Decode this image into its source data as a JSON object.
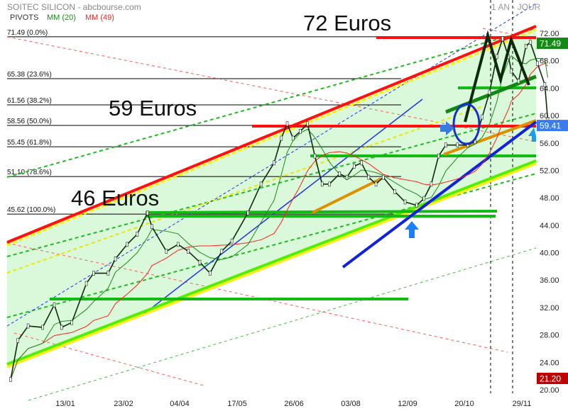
{
  "header": {
    "title": "SOITEC SILICON - abcbourse.com",
    "period": "1 AN - JOUR",
    "legend": [
      {
        "label": "PIVOTS",
        "color": "#333333"
      },
      {
        "label": "MM (20)",
        "color": "#1a8c1a"
      },
      {
        "label": "MM (49)",
        "color": "#ff2020"
      }
    ]
  },
  "annotations": {
    "level_72": "72 Euros",
    "level_59": "59 Euros",
    "level_46": "46 Euros"
  },
  "chart_data": {
    "type": "line",
    "title": "SOITEC SILICON - abcbourse.com",
    "ylim": [
      20,
      72
    ],
    "y_ticks": [
      "72.00",
      "68.00",
      "64.00",
      "60.00",
      "56.00",
      "52.00",
      "48.00",
      "44.00",
      "40.00",
      "36.00",
      "32.00",
      "28.00",
      "24.00",
      "20.00"
    ],
    "x_ticks": [
      "13/01",
      "23/02",
      "04/04",
      "17/05",
      "26/06",
      "03/08",
      "12/09",
      "20/10",
      "29/11"
    ],
    "fibonacci": [
      {
        "label": "71.49  (0.0%)",
        "value": 71.49
      },
      {
        "label": "65.38  (23.6%)",
        "value": 65.38
      },
      {
        "label": "61.56  (38.2%)",
        "value": 61.56
      },
      {
        "label": "58.56  (50.0%)",
        "value": 58.56
      },
      {
        "label": "55.45  (61.8%)",
        "value": 55.45
      },
      {
        "label": "51.10  (78.6%)",
        "value": 51.1
      },
      {
        "label": "45.62  (100.0%)",
        "value": 45.62
      }
    ],
    "price_badges": [
      {
        "label": "71.49",
        "value": 71.49,
        "color": "#138a13"
      },
      {
        "label": "59.41",
        "value": 59.41,
        "color": "#3a7cf0"
      },
      {
        "label": "21.20",
        "value": 21.2,
        "color": "#c00000"
      }
    ],
    "series": [
      {
        "name": "SOITEC SILICON",
        "color": "#0e2a0e",
        "x": [
          "06/12",
          "11/12",
          "18/12",
          "28/12",
          "05/01",
          "10/01",
          "17/01",
          "27/01",
          "01/02",
          "11/02",
          "16/02",
          "24/02",
          "03/03",
          "10/03",
          "13/03",
          "23/03",
          "31/03",
          "07/04",
          "15/04",
          "22/04",
          "30/04",
          "07/05",
          "18/05",
          "27/05",
          "05/06",
          "10/06",
          "14/06",
          "18/06",
          "23/06",
          "28/06",
          "03/07",
          "08/07",
          "13/07",
          "20/07",
          "25/07",
          "30/07",
          "04/08",
          "09/08",
          "14/08",
          "19/08",
          "27/08",
          "03/09",
          "11/09",
          "16/09",
          "21/09",
          "26/09",
          "01/10",
          "09/10",
          "16/10",
          "21/10",
          "26/10",
          "31/10",
          "05/11",
          "09/11",
          "13/11",
          "15/11",
          "20/11",
          "25/11",
          "28/11",
          "03/12",
          "08/12",
          "10/12"
        ],
        "values": [
          21.5,
          27.2,
          29.3,
          29.1,
          32.4,
          29.1,
          29.8,
          35.5,
          37.0,
          37.0,
          39.1,
          41.2,
          42.7,
          45.8,
          43.8,
          40.2,
          41.2,
          40.2,
          38.6,
          37.0,
          40.2,
          41.7,
          45.8,
          50.0,
          53.1,
          56.7,
          58.8,
          56.7,
          57.7,
          58.8,
          54.1,
          50.0,
          50.0,
          51.5,
          51.0,
          52.6,
          53.1,
          51.0,
          50.0,
          51.0,
          48.9,
          47.4,
          46.9,
          47.9,
          50.0,
          54.1,
          55.7,
          55.7,
          55.7,
          56.2,
          59.8,
          63.4,
          68.6,
          71.2,
          68.6,
          66.5,
          65.0,
          70.1,
          70.7,
          67.6,
          64.5,
          59.41
        ]
      },
      {
        "name": "MM (20)",
        "color": "#1a8c1a",
        "derived": "moving-average"
      },
      {
        "name": "MM (49)",
        "color": "#ff2020",
        "derived": "moving-average"
      }
    ]
  }
}
